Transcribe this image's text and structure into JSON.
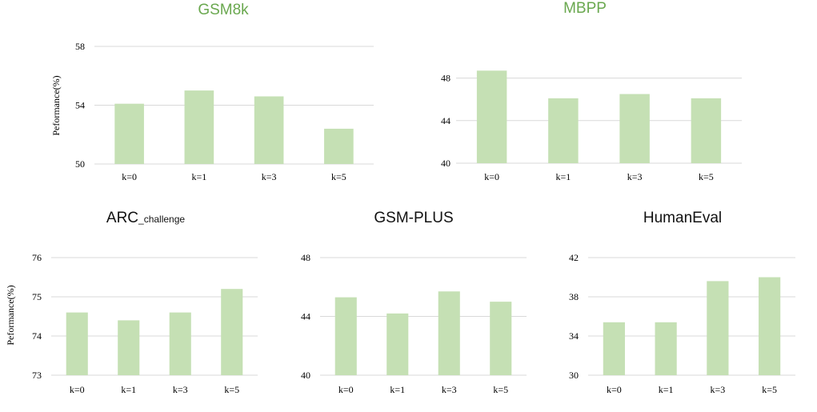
{
  "colors": {
    "bar": "#c5e0b4",
    "grid": "#d9d9d9",
    "title_top": "#6aa84f",
    "title_bottom": "#111111"
  },
  "chart_data": [
    {
      "type": "bar",
      "title": "GSM8k",
      "ylabel": "Peformance(%)",
      "categories": [
        "k=0",
        "k=1",
        "k=3",
        "k=5"
      ],
      "values": [
        54.1,
        55.0,
        54.6,
        52.4
      ],
      "ylim": [
        50,
        58
      ],
      "yticks": [
        "50",
        "54",
        "58"
      ],
      "grid": true
    },
    {
      "type": "bar",
      "title": "MBPP",
      "ylabel": "",
      "categories": [
        "k=0",
        "k=1",
        "k=3",
        "k=5"
      ],
      "values": [
        48.7,
        46.1,
        46.5,
        46.1
      ],
      "ylim": [
        40,
        50
      ],
      "yticks": [
        "40",
        "44",
        "48"
      ],
      "grid": true
    },
    {
      "type": "bar",
      "title": "ARC",
      "title_sub": "_challenge",
      "ylabel": "Peformance(%)",
      "categories": [
        "k=0",
        "k=1",
        "k=3",
        "k=5"
      ],
      "values": [
        74.6,
        74.4,
        74.6,
        75.2
      ],
      "ylim": [
        73,
        76
      ],
      "yticks": [
        "73",
        "74",
        "75",
        "76"
      ],
      "grid": true
    },
    {
      "type": "bar",
      "title": "GSM-PLUS",
      "ylabel": "",
      "categories": [
        "k=0",
        "k=1",
        "k=3",
        "k=5"
      ],
      "values": [
        45.3,
        44.2,
        45.7,
        45.0
      ],
      "ylim": [
        40,
        48
      ],
      "yticks": [
        "40",
        "44",
        "48"
      ],
      "grid": true
    },
    {
      "type": "bar",
      "title": "HumanEval",
      "ylabel": "",
      "categories": [
        "k=0",
        "k=1",
        "k=3",
        "k=5"
      ],
      "values": [
        35.4,
        35.4,
        39.6,
        40.0
      ],
      "ylim": [
        30,
        42
      ],
      "yticks": [
        "30",
        "34",
        "38",
        "42"
      ],
      "grid": true
    }
  ]
}
